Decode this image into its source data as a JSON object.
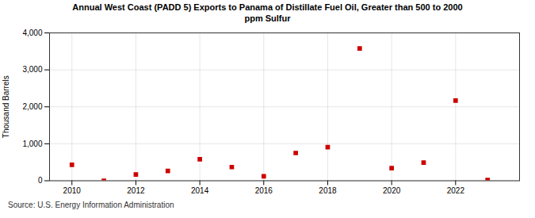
{
  "chart_data": {
    "type": "scatter",
    "title": "Annual West Coast (PADD 5) Exports to Panama of Distillate Fuel Oil, Greater than 500 to 2000\nppm Sulfur",
    "ylabel": "Thousand Barrels",
    "source": "Source: U.S. Energy Information Administration",
    "x": [
      2010,
      2011,
      2012,
      2013,
      2014,
      2015,
      2016,
      2017,
      2018,
      2019,
      2020,
      2021,
      2022,
      2023
    ],
    "values": [
      430,
      0,
      170,
      265,
      580,
      370,
      120,
      750,
      910,
      3580,
      340,
      490,
      2170,
      20
    ],
    "color": "#cc0000",
    "marker": "square",
    "xlim": [
      2009.3,
      2024.0
    ],
    "xticks": [
      2010,
      2012,
      2014,
      2016,
      2018,
      2020,
      2022
    ],
    "ylim": [
      0,
      4000
    ],
    "yticks": [
      0,
      {
        "value": 1000,
        "label": "1,000"
      },
      {
        "value": 2000,
        "label": "2,000"
      },
      {
        "value": 3000,
        "label": "3,000"
      },
      {
        "value": 4000,
        "label": "4,000"
      }
    ],
    "grid": true
  }
}
